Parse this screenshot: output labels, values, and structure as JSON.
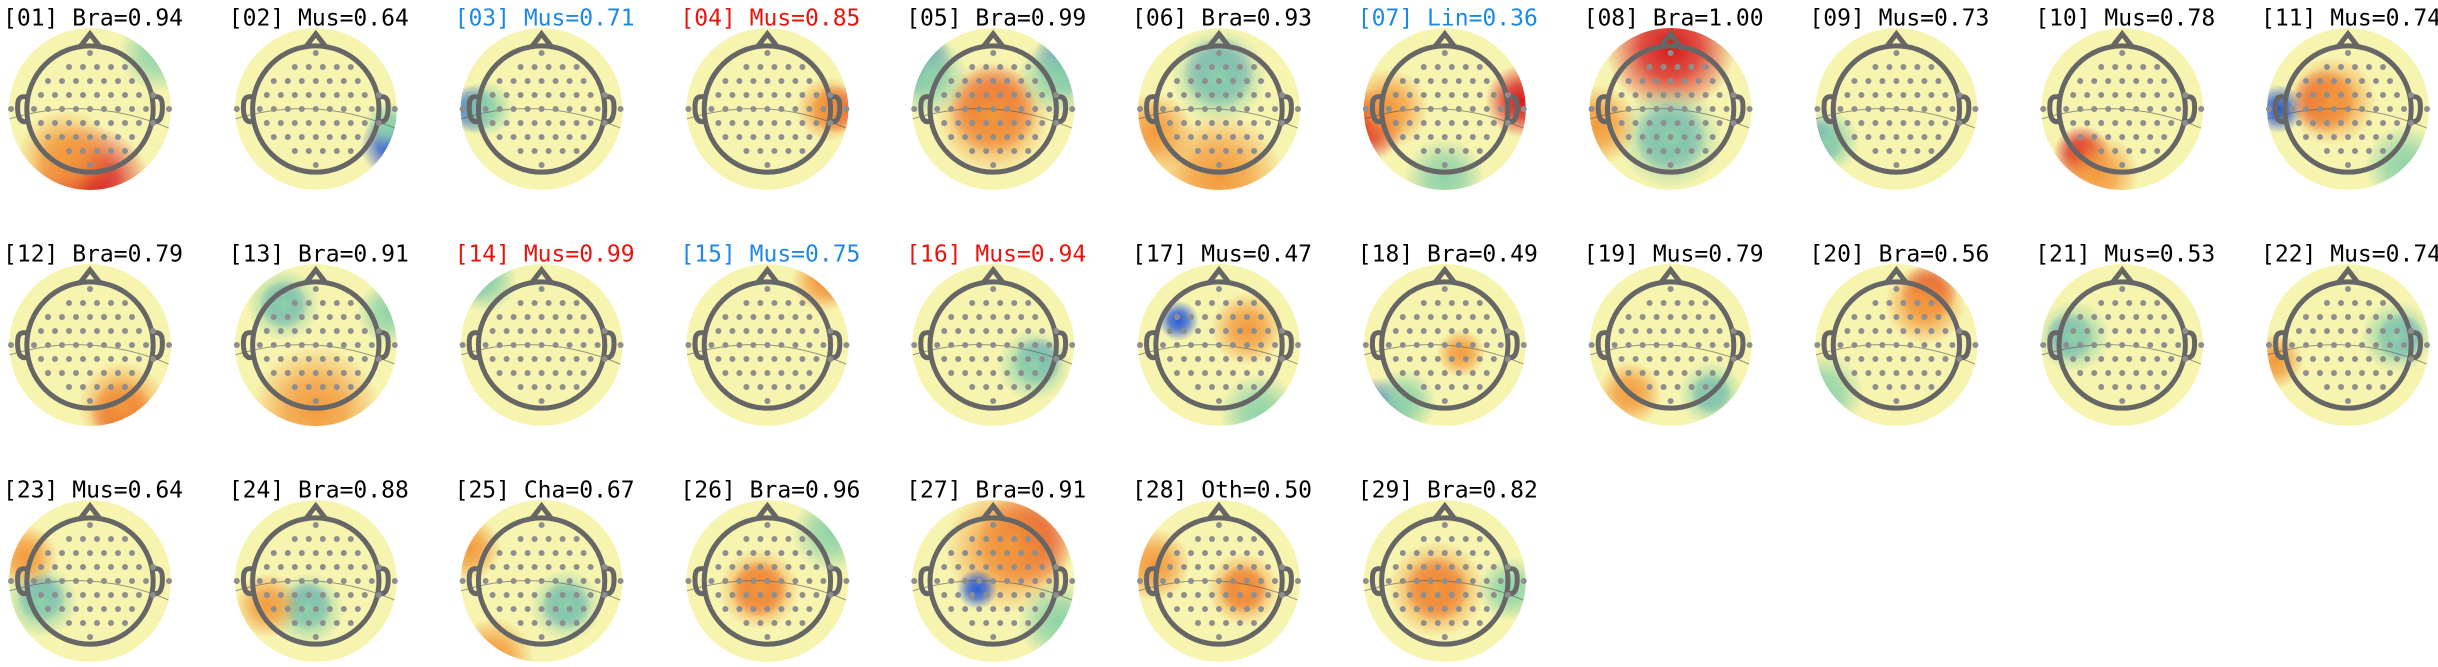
{
  "components": [
    {
      "title": "[01] Bra=0.94",
      "color": "#000000"
    },
    {
      "title": "[02] Mus=0.64",
      "color": "#000000"
    },
    {
      "title": "[03] Mus=0.71",
      "color": "#1e88e5"
    },
    {
      "title": "[04] Mus=0.85",
      "color": "#e8140c"
    },
    {
      "title": "[05] Bra=0.99",
      "color": "#000000"
    },
    {
      "title": "[06] Bra=0.93",
      "color": "#000000"
    },
    {
      "title": "[07] Lin=0.36",
      "color": "#1e88e5"
    },
    {
      "title": "[08] Bra=1.00",
      "color": "#000000"
    },
    {
      "title": "[09] Mus=0.73",
      "color": "#000000"
    },
    {
      "title": "[10] Mus=0.78",
      "color": "#000000"
    },
    {
      "title": "[11] Mus=0.74",
      "color": "#000000"
    },
    {
      "title": "[12] Bra=0.79",
      "color": "#000000"
    },
    {
      "title": "[13] Bra=0.91",
      "color": "#000000"
    },
    {
      "title": "[14] Mus=0.99",
      "color": "#e8140c"
    },
    {
      "title": "[15] Mus=0.75",
      "color": "#1e88e5"
    },
    {
      "title": "[16] Mus=0.94",
      "color": "#e8140c"
    },
    {
      "title": "[17] Mus=0.47",
      "color": "#000000"
    },
    {
      "title": "[18] Bra=0.49",
      "color": "#000000"
    },
    {
      "title": "[19] Mus=0.79",
      "color": "#000000"
    },
    {
      "title": "[20] Bra=0.56",
      "color": "#000000"
    },
    {
      "title": "[21] Mus=0.53",
      "color": "#000000"
    },
    {
      "title": "[22] Mus=0.74",
      "color": "#000000"
    },
    {
      "title": "[23] Mus=0.64",
      "color": "#000000"
    },
    {
      "title": "[24] Bra=0.88",
      "color": "#000000"
    },
    {
      "title": "[25] Cha=0.67",
      "color": "#000000"
    },
    {
      "title": "[26] Bra=0.96",
      "color": "#000000"
    },
    {
      "title": "[27] Bra=0.91",
      "color": "#000000"
    },
    {
      "title": "[28] Oth=0.50",
      "color": "#000000"
    },
    {
      "title": "[29] Bra=0.82",
      "color": "#000000"
    }
  ]
}
